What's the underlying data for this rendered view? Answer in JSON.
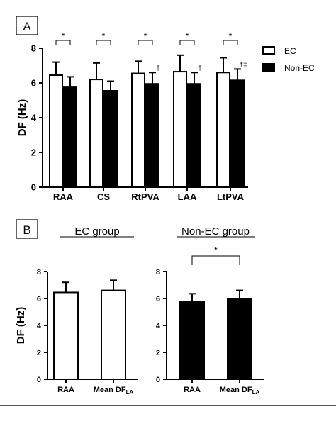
{
  "panel_a": {
    "label": "A"
  },
  "panel_b": {
    "label": "B",
    "ec_title": "EC group",
    "nonec_title": "Non-EC group"
  },
  "colors": {
    "ec": "#ffffff",
    "nonec": "#000000",
    "stroke": "#000000"
  },
  "chart_data": [
    {
      "id": "panel-a",
      "type": "bar",
      "ylabel": "DF (Hz)",
      "ylim": [
        0,
        8
      ],
      "yticks": [
        "0",
        "2",
        "4",
        "6",
        "8"
      ],
      "categories": [
        "RAA",
        "CS",
        "RtPVA",
        "LAA",
        "LtPVA"
      ],
      "series": [
        {
          "name": "EC",
          "values": [
            6.45,
            6.2,
            6.55,
            6.65,
            6.6
          ],
          "errors": [
            0.75,
            0.95,
            0.7,
            0.95,
            0.85
          ]
        },
        {
          "name": "Non-EC",
          "values": [
            5.75,
            5.55,
            5.95,
            5.95,
            6.15
          ],
          "errors": [
            0.6,
            0.55,
            0.65,
            0.65,
            0.65
          ]
        }
      ],
      "significance": [
        "*",
        "*",
        "*",
        "*",
        "*"
      ],
      "annotations": [
        "",
        "",
        "†",
        "†",
        "†‡"
      ],
      "legend_position": "top-right"
    },
    {
      "id": "panel-b-ec",
      "type": "bar",
      "title": "EC group",
      "ylabel": "DF (Hz)",
      "ylim": [
        0,
        8
      ],
      "yticks": [
        "0",
        "2",
        "4",
        "6",
        "8"
      ],
      "categories": [
        "RAA",
        "Mean DF"
      ],
      "category_subscripts": [
        "",
        "LA"
      ],
      "values": [
        6.45,
        6.6
      ],
      "errors": [
        0.75,
        0.75
      ]
    },
    {
      "id": "panel-b-nonec",
      "type": "bar",
      "title": "Non-EC group",
      "ylim": [
        0,
        8
      ],
      "yticks": [
        "0",
        "2",
        "4",
        "6",
        "8"
      ],
      "categories": [
        "RAA",
        "Mean DF"
      ],
      "category_subscripts": [
        "",
        "LA"
      ],
      "values": [
        5.75,
        6.0
      ],
      "errors": [
        0.6,
        0.6
      ],
      "significance": "*"
    }
  ]
}
